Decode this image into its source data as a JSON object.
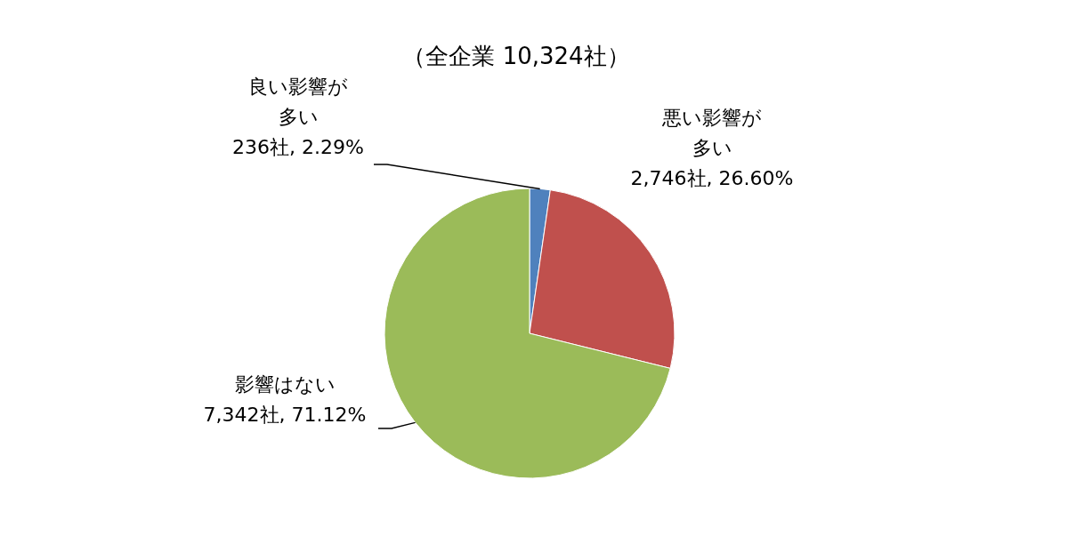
{
  "chart_data": {
    "type": "pie",
    "title": "（全企業 10,324社）",
    "categories": [
      "良い影響が多い",
      "悪い影響が多い",
      "影響はない"
    ],
    "values": [
      236,
      2746,
      7342
    ],
    "value_labels": [
      "236社, 2.29%",
      "2,746社, 26.60%",
      "7,342社, 71.12%"
    ],
    "colors": [
      "#4f81bd",
      "#c0504d",
      "#9bbb59"
    ]
  }
}
